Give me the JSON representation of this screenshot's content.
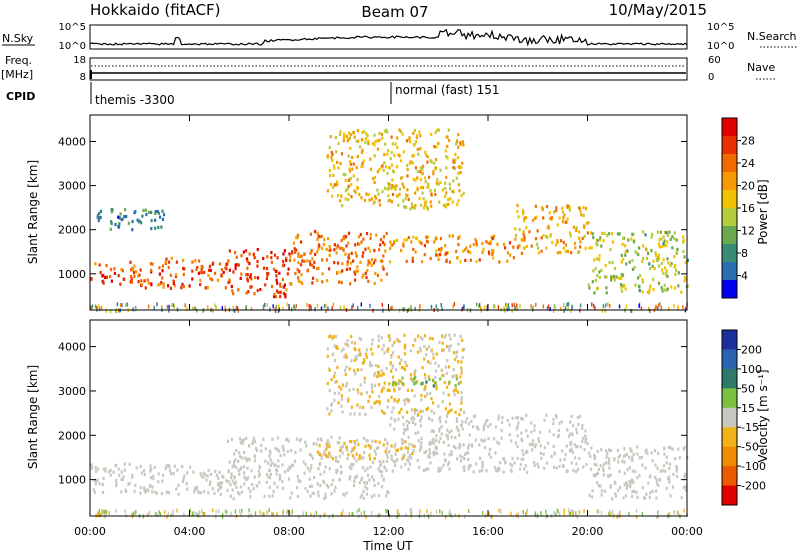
{
  "header": {
    "title_left": "Hokkaido (fitACF)",
    "title_center": "Beam 07",
    "title_right": "10/May/2015"
  },
  "panels": {
    "noise": {
      "label_left": "N.Sky",
      "label_right": "N.Search",
      "ticks_left": [
        "10^5",
        "10^0"
      ],
      "ticks_right": [
        "10^5",
        "10^0"
      ]
    },
    "freq": {
      "label_left_line1": "Freq.",
      "label_left_line2": "[MHz]",
      "label_right": "Nave",
      "ticks_left": [
        "18",
        "8"
      ],
      "ticks_right": [
        "60",
        "0"
      ]
    },
    "cpid": {
      "label": "CPID",
      "segments": [
        "themis -3300",
        "normal (fast) 151"
      ]
    }
  },
  "colorbars": {
    "power": {
      "label": "Power [dB]",
      "ticks": [
        "28",
        "24",
        "20",
        "16",
        "12",
        "8",
        "4"
      ],
      "colors": [
        "#0000ee",
        "#2a6fb0",
        "#3a8a78",
        "#6aa84f",
        "#b6cc3a",
        "#f2c200",
        "#f59a00",
        "#f06a00",
        "#e83000",
        "#e00000"
      ]
    },
    "velocity": {
      "label": "Velocity [m s⁻¹]",
      "ticks": [
        "200",
        "100",
        "50",
        "15",
        "-15",
        "-50",
        "-100",
        "-200"
      ],
      "colors": [
        "#1d2f9a",
        "#2a63b0",
        "#2d7a6a",
        "#7ac142",
        "#c8c8c0",
        "#f2b21a",
        "#f08a00",
        "#ec5a00",
        "#e10000"
      ]
    }
  },
  "axes": {
    "ylabel_top": "Slant Range [km]",
    "ylabel_bottom": "Slant Range [km]",
    "xlabel": "Time UT"
  },
  "chart_data": [
    {
      "type": "heatmap",
      "title": "",
      "xlabel": "",
      "ylabel": "Slant Range [km]",
      "x_ticks": [
        "00:00",
        "04:00",
        "08:00",
        "12:00",
        "16:00",
        "20:00",
        "00:00"
      ],
      "xlim_hours": [
        0,
        24
      ],
      "y_ticks": [
        1000,
        2000,
        3000,
        4000
      ],
      "ylim": [
        180,
        4600
      ],
      "colorbar": "Power [dB]",
      "scatter_bands": [
        {
          "t0": 0.0,
          "t1": 2.0,
          "r0": 750,
          "r1": 1300,
          "value": 26
        },
        {
          "t0": 2.0,
          "t1": 5.5,
          "r0": 700,
          "r1": 1400,
          "value": 25
        },
        {
          "t0": 5.5,
          "t1": 8.0,
          "r0": 500,
          "r1": 1600,
          "value": 27
        },
        {
          "t0": 8.0,
          "t1": 12.0,
          "r0": 800,
          "r1": 2000,
          "value": 24
        },
        {
          "t0": 12.0,
          "t1": 17.0,
          "r0": 1300,
          "r1": 1900,
          "value": 22
        },
        {
          "t0": 17.0,
          "t1": 20.0,
          "r0": 1500,
          "r1": 2600,
          "value": 20
        },
        {
          "t0": 20.0,
          "t1": 24.0,
          "r0": 600,
          "r1": 2000,
          "value": 14
        },
        {
          "t0": 0.0,
          "t1": 3.0,
          "r0": 2000,
          "r1": 2500,
          "value": 8
        },
        {
          "t0": 9.5,
          "t1": 15.0,
          "r0": 2500,
          "r1": 4300,
          "value": 18
        }
      ]
    },
    {
      "type": "heatmap",
      "title": "",
      "xlabel": "Time UT",
      "ylabel": "Slant Range [km]",
      "x_ticks": [
        "00:00",
        "04:00",
        "08:00",
        "12:00",
        "16:00",
        "20:00",
        "00:00"
      ],
      "xlim_hours": [
        0,
        24
      ],
      "y_ticks": [
        1000,
        2000,
        3000,
        4000
      ],
      "ylim": [
        180,
        4600
      ],
      "colorbar": "Velocity [m s⁻¹]",
      "scatter_bands": [
        {
          "t0": 0.0,
          "t1": 5.5,
          "r0": 700,
          "r1": 1400,
          "value": 0
        },
        {
          "t0": 5.5,
          "t1": 12.0,
          "r0": 600,
          "r1": 2000,
          "value": 0
        },
        {
          "t0": 12.0,
          "t1": 20.0,
          "r0": 1200,
          "r1": 2500,
          "value": 0
        },
        {
          "t0": 20.0,
          "t1": 24.0,
          "r0": 600,
          "r1": 1800,
          "value": 0
        },
        {
          "t0": 9.5,
          "t1": 15.0,
          "r0": 2500,
          "r1": 4300,
          "value": -30
        },
        {
          "t0": 12.0,
          "t1": 15.0,
          "r0": 3150,
          "r1": 3350,
          "value": 60
        },
        {
          "t0": 9.0,
          "t1": 13.0,
          "r0": 1500,
          "r1": 1900,
          "value": -40
        }
      ]
    }
  ]
}
